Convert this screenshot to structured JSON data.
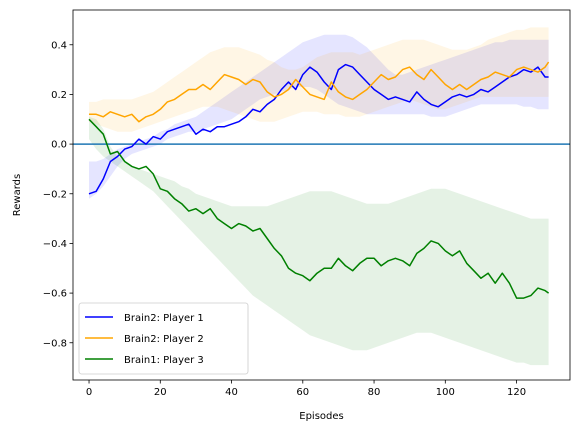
{
  "chart_data": {
    "type": "line",
    "title": "",
    "xlabel": "Episodes",
    "ylabel": "Rewards",
    "xlim": [
      -4.5,
      135
    ],
    "ylim": [
      -0.95,
      0.54
    ],
    "xticks": [
      0,
      20,
      40,
      60,
      80,
      100,
      120
    ],
    "yticks": [
      0.4,
      0.2,
      0.0,
      -0.2,
      -0.4,
      -0.6,
      -0.8
    ],
    "ytick_labels": [
      "0.4",
      "0.2",
      "0.0",
      "−0.2",
      "−0.4",
      "−0.6",
      "−0.8"
    ],
    "hline": {
      "y": 0,
      "color": "#1f77b4"
    },
    "grid": false,
    "legend_position": "lower-left",
    "series": [
      {
        "name": "Brain2: Player 1",
        "color": "#0000ff",
        "x": [
          0,
          2,
          4,
          6,
          8,
          10,
          12,
          14,
          16,
          18,
          20,
          22,
          24,
          26,
          28,
          30,
          32,
          34,
          36,
          38,
          40,
          42,
          44,
          46,
          48,
          50,
          52,
          54,
          56,
          58,
          60,
          62,
          64,
          66,
          68,
          70,
          72,
          74,
          76,
          78,
          80,
          82,
          84,
          86,
          88,
          90,
          92,
          94,
          96,
          98,
          100,
          102,
          104,
          106,
          108,
          110,
          112,
          114,
          116,
          118,
          120,
          122,
          124,
          126,
          128,
          129
        ],
        "y": [
          -0.2,
          -0.19,
          -0.14,
          -0.07,
          -0.05,
          -0.02,
          -0.01,
          0.02,
          0.0,
          0.03,
          0.02,
          0.05,
          0.06,
          0.07,
          0.08,
          0.04,
          0.06,
          0.05,
          0.07,
          0.07,
          0.08,
          0.09,
          0.11,
          0.14,
          0.13,
          0.16,
          0.18,
          0.22,
          0.25,
          0.22,
          0.28,
          0.31,
          0.29,
          0.25,
          0.22,
          0.3,
          0.32,
          0.31,
          0.28,
          0.25,
          0.22,
          0.2,
          0.18,
          0.19,
          0.18,
          0.17,
          0.21,
          0.18,
          0.16,
          0.15,
          0.17,
          0.19,
          0.2,
          0.19,
          0.2,
          0.22,
          0.21,
          0.23,
          0.25,
          0.27,
          0.28,
          0.3,
          0.29,
          0.31,
          0.27,
          0.27
        ],
        "lower": [
          -0.22,
          -0.2,
          -0.17,
          -0.13,
          -0.09,
          -0.06,
          -0.04,
          -0.03,
          -0.02,
          -0.01,
          0.0,
          0.02,
          0.03,
          0.04,
          0.05,
          0.05,
          0.06,
          0.07,
          0.08,
          0.09,
          0.1,
          0.12,
          0.14,
          0.16,
          0.18,
          0.19,
          0.2,
          0.21,
          0.22,
          0.23,
          0.23,
          0.23,
          0.22,
          0.2,
          0.18,
          0.16,
          0.15,
          0.14,
          0.13,
          0.12,
          0.12,
          0.12,
          0.12,
          0.12,
          0.12,
          0.12,
          0.12,
          0.12,
          0.11,
          0.11,
          0.11,
          0.12,
          0.13,
          0.14,
          0.15,
          0.16,
          0.16,
          0.16,
          0.16,
          0.16,
          0.16,
          0.15,
          0.15,
          0.14,
          0.14,
          0.14
        ],
        "upper": [
          -0.07,
          -0.07,
          -0.06,
          -0.04,
          -0.02,
          -0.01,
          0.0,
          0.01,
          0.02,
          0.03,
          0.05,
          0.06,
          0.08,
          0.09,
          0.1,
          0.11,
          0.13,
          0.15,
          0.17,
          0.19,
          0.21,
          0.23,
          0.25,
          0.27,
          0.29,
          0.31,
          0.33,
          0.35,
          0.37,
          0.39,
          0.41,
          0.42,
          0.43,
          0.44,
          0.44,
          0.44,
          0.44,
          0.43,
          0.41,
          0.39,
          0.36,
          0.33,
          0.3,
          0.28,
          0.28,
          0.29,
          0.3,
          0.31,
          0.32,
          0.33,
          0.34,
          0.35,
          0.36,
          0.37,
          0.38,
          0.39,
          0.4,
          0.41,
          0.41,
          0.42,
          0.42,
          0.42,
          0.42,
          0.42,
          0.42,
          0.42
        ]
      },
      {
        "name": "Brain2: Player 2",
        "color": "#ffa500",
        "x": [
          0,
          2,
          4,
          6,
          8,
          10,
          12,
          14,
          16,
          18,
          20,
          22,
          24,
          26,
          28,
          30,
          32,
          34,
          36,
          38,
          40,
          42,
          44,
          46,
          48,
          50,
          52,
          54,
          56,
          58,
          60,
          62,
          64,
          66,
          68,
          70,
          72,
          74,
          76,
          78,
          80,
          82,
          84,
          86,
          88,
          90,
          92,
          94,
          96,
          98,
          100,
          102,
          104,
          106,
          108,
          110,
          112,
          114,
          116,
          118,
          120,
          122,
          124,
          126,
          128,
          129
        ],
        "y": [
          0.12,
          0.12,
          0.11,
          0.13,
          0.12,
          0.11,
          0.12,
          0.09,
          0.11,
          0.12,
          0.14,
          0.17,
          0.18,
          0.2,
          0.22,
          0.22,
          0.24,
          0.22,
          0.25,
          0.28,
          0.27,
          0.26,
          0.24,
          0.26,
          0.25,
          0.21,
          0.19,
          0.2,
          0.22,
          0.26,
          0.23,
          0.2,
          0.19,
          0.18,
          0.25,
          0.21,
          0.19,
          0.18,
          0.2,
          0.22,
          0.25,
          0.28,
          0.26,
          0.27,
          0.3,
          0.31,
          0.28,
          0.26,
          0.3,
          0.27,
          0.24,
          0.22,
          0.24,
          0.22,
          0.24,
          0.26,
          0.27,
          0.29,
          0.28,
          0.27,
          0.3,
          0.31,
          0.3,
          0.29,
          0.31,
          0.33
        ],
        "lower": [
          0.09,
          0.08,
          0.07,
          0.06,
          0.05,
          0.05,
          0.05,
          0.06,
          0.07,
          0.08,
          0.09,
          0.1,
          0.11,
          0.12,
          0.13,
          0.14,
          0.15,
          0.15,
          0.15,
          0.14,
          0.13,
          0.12,
          0.11,
          0.1,
          0.09,
          0.09,
          0.09,
          0.1,
          0.11,
          0.12,
          0.13,
          0.13,
          0.13,
          0.12,
          0.12,
          0.12,
          0.11,
          0.11,
          0.11,
          0.12,
          0.13,
          0.14,
          0.15,
          0.16,
          0.17,
          0.18,
          0.17,
          0.16,
          0.15,
          0.14,
          0.14,
          0.15,
          0.16,
          0.17,
          0.18,
          0.19,
          0.19,
          0.19,
          0.19,
          0.19,
          0.19,
          0.19,
          0.19,
          0.19,
          0.19,
          0.19
        ],
        "upper": [
          0.17,
          0.17,
          0.18,
          0.18,
          0.18,
          0.18,
          0.18,
          0.19,
          0.2,
          0.21,
          0.23,
          0.25,
          0.27,
          0.29,
          0.31,
          0.33,
          0.35,
          0.37,
          0.38,
          0.39,
          0.39,
          0.39,
          0.38,
          0.37,
          0.36,
          0.34,
          0.33,
          0.31,
          0.3,
          0.3,
          0.31,
          0.33,
          0.35,
          0.36,
          0.37,
          0.37,
          0.37,
          0.37,
          0.36,
          0.37,
          0.38,
          0.39,
          0.4,
          0.41,
          0.42,
          0.42,
          0.42,
          0.42,
          0.41,
          0.4,
          0.39,
          0.38,
          0.38,
          0.38,
          0.39,
          0.4,
          0.42,
          0.43,
          0.44,
          0.45,
          0.46,
          0.46,
          0.47,
          0.47,
          0.47,
          0.47
        ]
      },
      {
        "name": "Brain1: Player 3",
        "color": "#008000",
        "x": [
          0,
          2,
          4,
          6,
          8,
          10,
          12,
          14,
          16,
          18,
          20,
          22,
          24,
          26,
          28,
          30,
          32,
          34,
          36,
          38,
          40,
          42,
          44,
          46,
          48,
          50,
          52,
          54,
          56,
          58,
          60,
          62,
          64,
          66,
          68,
          70,
          72,
          74,
          76,
          78,
          80,
          82,
          84,
          86,
          88,
          90,
          92,
          94,
          96,
          98,
          100,
          102,
          104,
          106,
          108,
          110,
          112,
          114,
          116,
          118,
          120,
          122,
          124,
          126,
          128,
          129
        ],
        "y": [
          0.1,
          0.07,
          0.04,
          -0.04,
          -0.03,
          -0.07,
          -0.09,
          -0.1,
          -0.09,
          -0.12,
          -0.18,
          -0.19,
          -0.22,
          -0.24,
          -0.27,
          -0.26,
          -0.28,
          -0.26,
          -0.3,
          -0.32,
          -0.34,
          -0.32,
          -0.33,
          -0.35,
          -0.34,
          -0.38,
          -0.42,
          -0.45,
          -0.5,
          -0.52,
          -0.53,
          -0.55,
          -0.52,
          -0.5,
          -0.5,
          -0.46,
          -0.49,
          -0.51,
          -0.48,
          -0.46,
          -0.46,
          -0.49,
          -0.47,
          -0.46,
          -0.47,
          -0.49,
          -0.44,
          -0.42,
          -0.39,
          -0.4,
          -0.43,
          -0.45,
          -0.43,
          -0.48,
          -0.51,
          -0.54,
          -0.52,
          -0.56,
          -0.52,
          -0.56,
          -0.62,
          -0.62,
          -0.61,
          -0.58,
          -0.59,
          -0.6
        ],
        "lower": [
          0.02,
          -0.02,
          -0.05,
          -0.07,
          -0.09,
          -0.11,
          -0.13,
          -0.15,
          -0.17,
          -0.19,
          -0.22,
          -0.25,
          -0.28,
          -0.31,
          -0.34,
          -0.37,
          -0.4,
          -0.43,
          -0.46,
          -0.49,
          -0.52,
          -0.55,
          -0.58,
          -0.61,
          -0.63,
          -0.65,
          -0.67,
          -0.69,
          -0.71,
          -0.73,
          -0.75,
          -0.77,
          -0.78,
          -0.79,
          -0.8,
          -0.81,
          -0.82,
          -0.83,
          -0.83,
          -0.83,
          -0.82,
          -0.81,
          -0.8,
          -0.79,
          -0.78,
          -0.77,
          -0.76,
          -0.76,
          -0.76,
          -0.77,
          -0.78,
          -0.79,
          -0.8,
          -0.81,
          -0.82,
          -0.83,
          -0.84,
          -0.85,
          -0.86,
          -0.87,
          -0.88,
          -0.88,
          -0.89,
          -0.89,
          -0.89,
          -0.89
        ],
        "upper": [
          0.11,
          0.1,
          0.06,
          -0.01,
          -0.05,
          -0.07,
          -0.09,
          -0.1,
          -0.11,
          -0.12,
          -0.13,
          -0.14,
          -0.15,
          -0.17,
          -0.18,
          -0.2,
          -0.21,
          -0.22,
          -0.23,
          -0.24,
          -0.25,
          -0.25,
          -0.25,
          -0.25,
          -0.25,
          -0.25,
          -0.24,
          -0.23,
          -0.22,
          -0.21,
          -0.2,
          -0.19,
          -0.19,
          -0.19,
          -0.19,
          -0.2,
          -0.21,
          -0.22,
          -0.23,
          -0.24,
          -0.24,
          -0.24,
          -0.24,
          -0.23,
          -0.22,
          -0.21,
          -0.2,
          -0.19,
          -0.18,
          -0.18,
          -0.18,
          -0.19,
          -0.2,
          -0.21,
          -0.22,
          -0.23,
          -0.24,
          -0.25,
          -0.26,
          -0.27,
          -0.28,
          -0.29,
          -0.3,
          -0.3,
          -0.3,
          -0.3
        ]
      }
    ]
  }
}
